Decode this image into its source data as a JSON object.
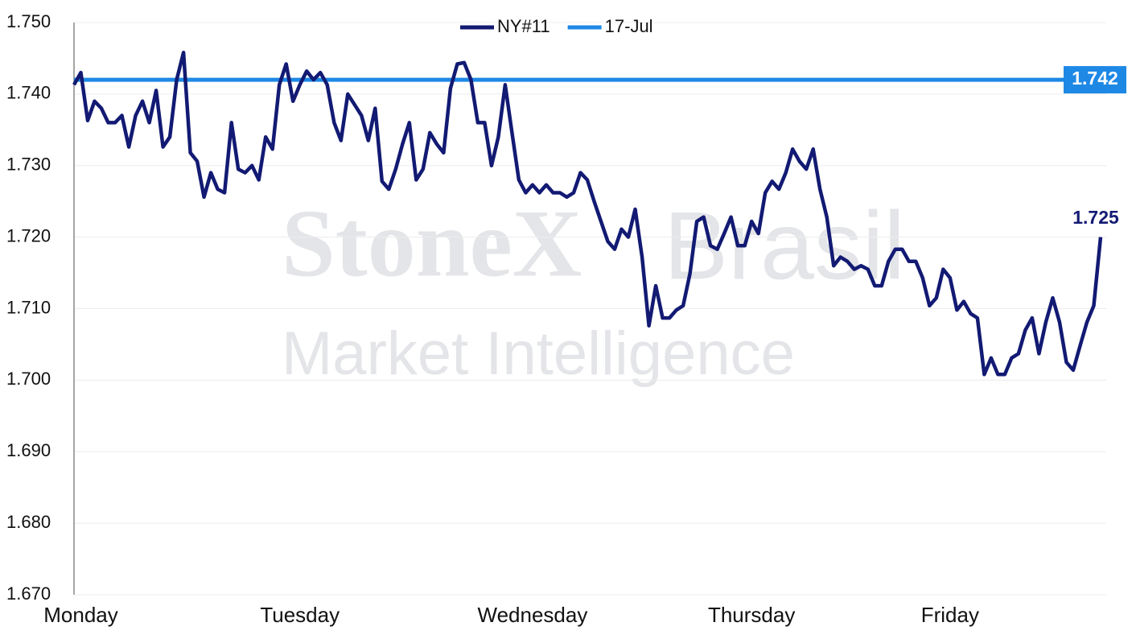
{
  "chart_data": {
    "type": "line",
    "watermark": {
      "brand": "StoneX",
      "region": "Brasil",
      "unit": "Market Intelligence"
    },
    "categories": [
      null,
      "Monday",
      null,
      null,
      null,
      null,
      null,
      null,
      null,
      null,
      null,
      null,
      null,
      null,
      null,
      null,
      null,
      null,
      null,
      null,
      null,
      null,
      null,
      null,
      null,
      null,
      null,
      null,
      null,
      null,
      null,
      null,
      null,
      "Tuesday",
      null,
      null,
      null,
      null,
      null,
      null,
      null,
      null,
      null,
      null,
      null,
      null,
      null,
      null,
      null,
      null,
      null,
      null,
      null,
      null,
      null,
      null,
      null,
      null,
      null,
      null,
      null,
      null,
      null,
      null,
      null,
      null,
      null,
      "Wednesday",
      null,
      null,
      null,
      null,
      null,
      null,
      null,
      null,
      null,
      null,
      null,
      null,
      null,
      null,
      null,
      null,
      null,
      null,
      null,
      null,
      null,
      null,
      null,
      null,
      null,
      null,
      null,
      null,
      null,
      null,
      null,
      "Thursday",
      null,
      null,
      null,
      null,
      null,
      null,
      null,
      null,
      null,
      null,
      null,
      null,
      null,
      null,
      null,
      null,
      null,
      null,
      null,
      null,
      null,
      null,
      null,
      null,
      null,
      null,
      null,
      null,
      "Friday",
      null,
      null,
      null,
      null,
      null,
      null,
      null,
      null,
      null,
      null,
      null,
      null,
      null,
      null,
      null,
      null,
      null,
      null,
      null,
      null,
      null,
      null
    ],
    "series": [
      {
        "name": "NY#11",
        "color": "#121a73",
        "values": [
          1.7413,
          1.743,
          1.7363,
          1.739,
          1.738,
          1.736,
          1.736,
          1.737,
          1.7326,
          1.737,
          1.739,
          1.736,
          1.7405,
          1.7326,
          1.734,
          1.742,
          1.7458,
          1.7318,
          1.7306,
          1.7256,
          1.729,
          1.7267,
          1.7262,
          1.736,
          1.7295,
          1.729,
          1.73,
          1.728,
          1.734,
          1.7323,
          1.7413,
          1.7442,
          1.739,
          1.7413,
          1.7432,
          1.742,
          1.743,
          1.7413,
          1.736,
          1.7335,
          1.74,
          1.7385,
          1.737,
          1.7335,
          1.738,
          1.7278,
          1.7267,
          1.7295,
          1.733,
          1.736,
          1.728,
          1.7295,
          1.7346,
          1.733,
          1.7318,
          1.7408,
          1.7442,
          1.7444,
          1.742,
          1.736,
          1.736,
          1.73,
          1.734,
          1.7413,
          1.7346,
          1.728,
          1.7262,
          1.7273,
          1.7262,
          1.7273,
          1.7262,
          1.7262,
          1.7256,
          1.7262,
          1.729,
          1.728,
          1.725,
          1.7222,
          1.7194,
          1.7183,
          1.7211,
          1.72,
          1.7239,
          1.7172,
          1.7076,
          1.7132,
          1.7087,
          1.7087,
          1.7098,
          1.7104,
          1.7149,
          1.7222,
          1.7228,
          1.7188,
          1.7183,
          1.7205,
          1.7228,
          1.7188,
          1.7188,
          1.7222,
          1.7205,
          1.7262,
          1.7278,
          1.7267,
          1.729,
          1.7323,
          1.7306,
          1.7295,
          1.7323,
          1.7267,
          1.7228,
          1.716,
          1.7172,
          1.7166,
          1.7155,
          1.716,
          1.7155,
          1.7132,
          1.7132,
          1.7166,
          1.7183,
          1.7183,
          1.7166,
          1.7166,
          1.7143,
          1.7104,
          1.7115,
          1.7155,
          1.7143,
          1.7098,
          1.711,
          1.7093,
          1.7087,
          1.7008,
          1.7031,
          1.7008,
          1.7008,
          1.7031,
          1.7037,
          1.707,
          1.7087,
          1.7037,
          1.7081,
          1.7115,
          1.7081,
          1.7025,
          1.7014,
          1.7048,
          1.7081,
          1.7104,
          1.72
        ]
      },
      {
        "name": "17-Jul",
        "color": "#1e88e5",
        "value": 1.742
      }
    ],
    "annotation": "1.725",
    "ylim": [
      1.67,
      1.75
    ],
    "yticks": [
      {
        "value": 1.67,
        "label": "1.670"
      },
      {
        "value": 1.68,
        "label": "1.680"
      },
      {
        "value": 1.69,
        "label": "1.690"
      },
      {
        "value": 1.7,
        "label": "1.700"
      },
      {
        "value": 1.71,
        "label": "1.710"
      },
      {
        "value": 1.72,
        "label": "1.720"
      },
      {
        "value": 1.73,
        "label": "1.730"
      },
      {
        "value": 1.74,
        "label": "1.740"
      },
      {
        "value": 1.75,
        "label": "1.750"
      }
    ],
    "grid": true,
    "legend": "top"
  }
}
